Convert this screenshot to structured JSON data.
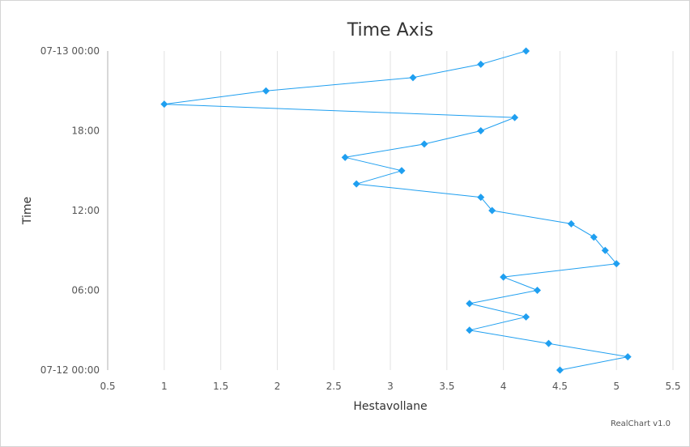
{
  "chart_data": {
    "type": "line",
    "orientation": "rotated",
    "title": "Time Axis",
    "xlabel": "Hestavollane",
    "ylabel": "Time",
    "value_axis": {
      "min": 0.5,
      "max": 5.5,
      "ticks": [
        "0.5",
        "1",
        "1.5",
        "2",
        "2.5",
        "3",
        "3.5",
        "4",
        "4.5",
        "5",
        "5.5"
      ]
    },
    "time_axis": {
      "min": "2023-07-12 00:00",
      "max": "2023-07-13 00:00",
      "ticks": [
        "07-12 00:00",
        "06:00",
        "12:00",
        "18:00",
        "07-13 00:00"
      ]
    },
    "grid": true,
    "series": [
      {
        "color": "#1f9ff0",
        "marker": "diamond",
        "points": [
          {
            "time": "2023-07-12 00:00",
            "value": 4.5
          },
          {
            "time": "2023-07-12 01:00",
            "value": 5.1
          },
          {
            "time": "2023-07-12 02:00",
            "value": 4.4
          },
          {
            "time": "2023-07-12 03:00",
            "value": 3.7
          },
          {
            "time": "2023-07-12 04:00",
            "value": 4.2
          },
          {
            "time": "2023-07-12 05:00",
            "value": 3.7
          },
          {
            "time": "2023-07-12 06:00",
            "value": 4.3
          },
          {
            "time": "2023-07-12 07:00",
            "value": 4.0
          },
          {
            "time": "2023-07-12 08:00",
            "value": 5.0
          },
          {
            "time": "2023-07-12 09:00",
            "value": 4.9
          },
          {
            "time": "2023-07-12 10:00",
            "value": 4.8
          },
          {
            "time": "2023-07-12 11:00",
            "value": 4.6
          },
          {
            "time": "2023-07-12 12:00",
            "value": 3.9
          },
          {
            "time": "2023-07-12 13:00",
            "value": 3.8
          },
          {
            "time": "2023-07-12 14:00",
            "value": 2.7
          },
          {
            "time": "2023-07-12 15:00",
            "value": 3.1
          },
          {
            "time": "2023-07-12 16:00",
            "value": 2.6
          },
          {
            "time": "2023-07-12 17:00",
            "value": 3.3
          },
          {
            "time": "2023-07-12 18:00",
            "value": 3.8
          },
          {
            "time": "2023-07-12 19:00",
            "value": 4.1
          },
          {
            "time": "2023-07-12 20:00",
            "value": 1.0
          },
          {
            "time": "2023-07-12 21:00",
            "value": 1.9
          },
          {
            "time": "2023-07-12 22:00",
            "value": 3.2
          },
          {
            "time": "2023-07-12 23:00",
            "value": 3.8
          },
          {
            "time": "2023-07-13 00:00",
            "value": 4.2
          }
        ]
      }
    ]
  },
  "credit": "RealChart v1.0"
}
